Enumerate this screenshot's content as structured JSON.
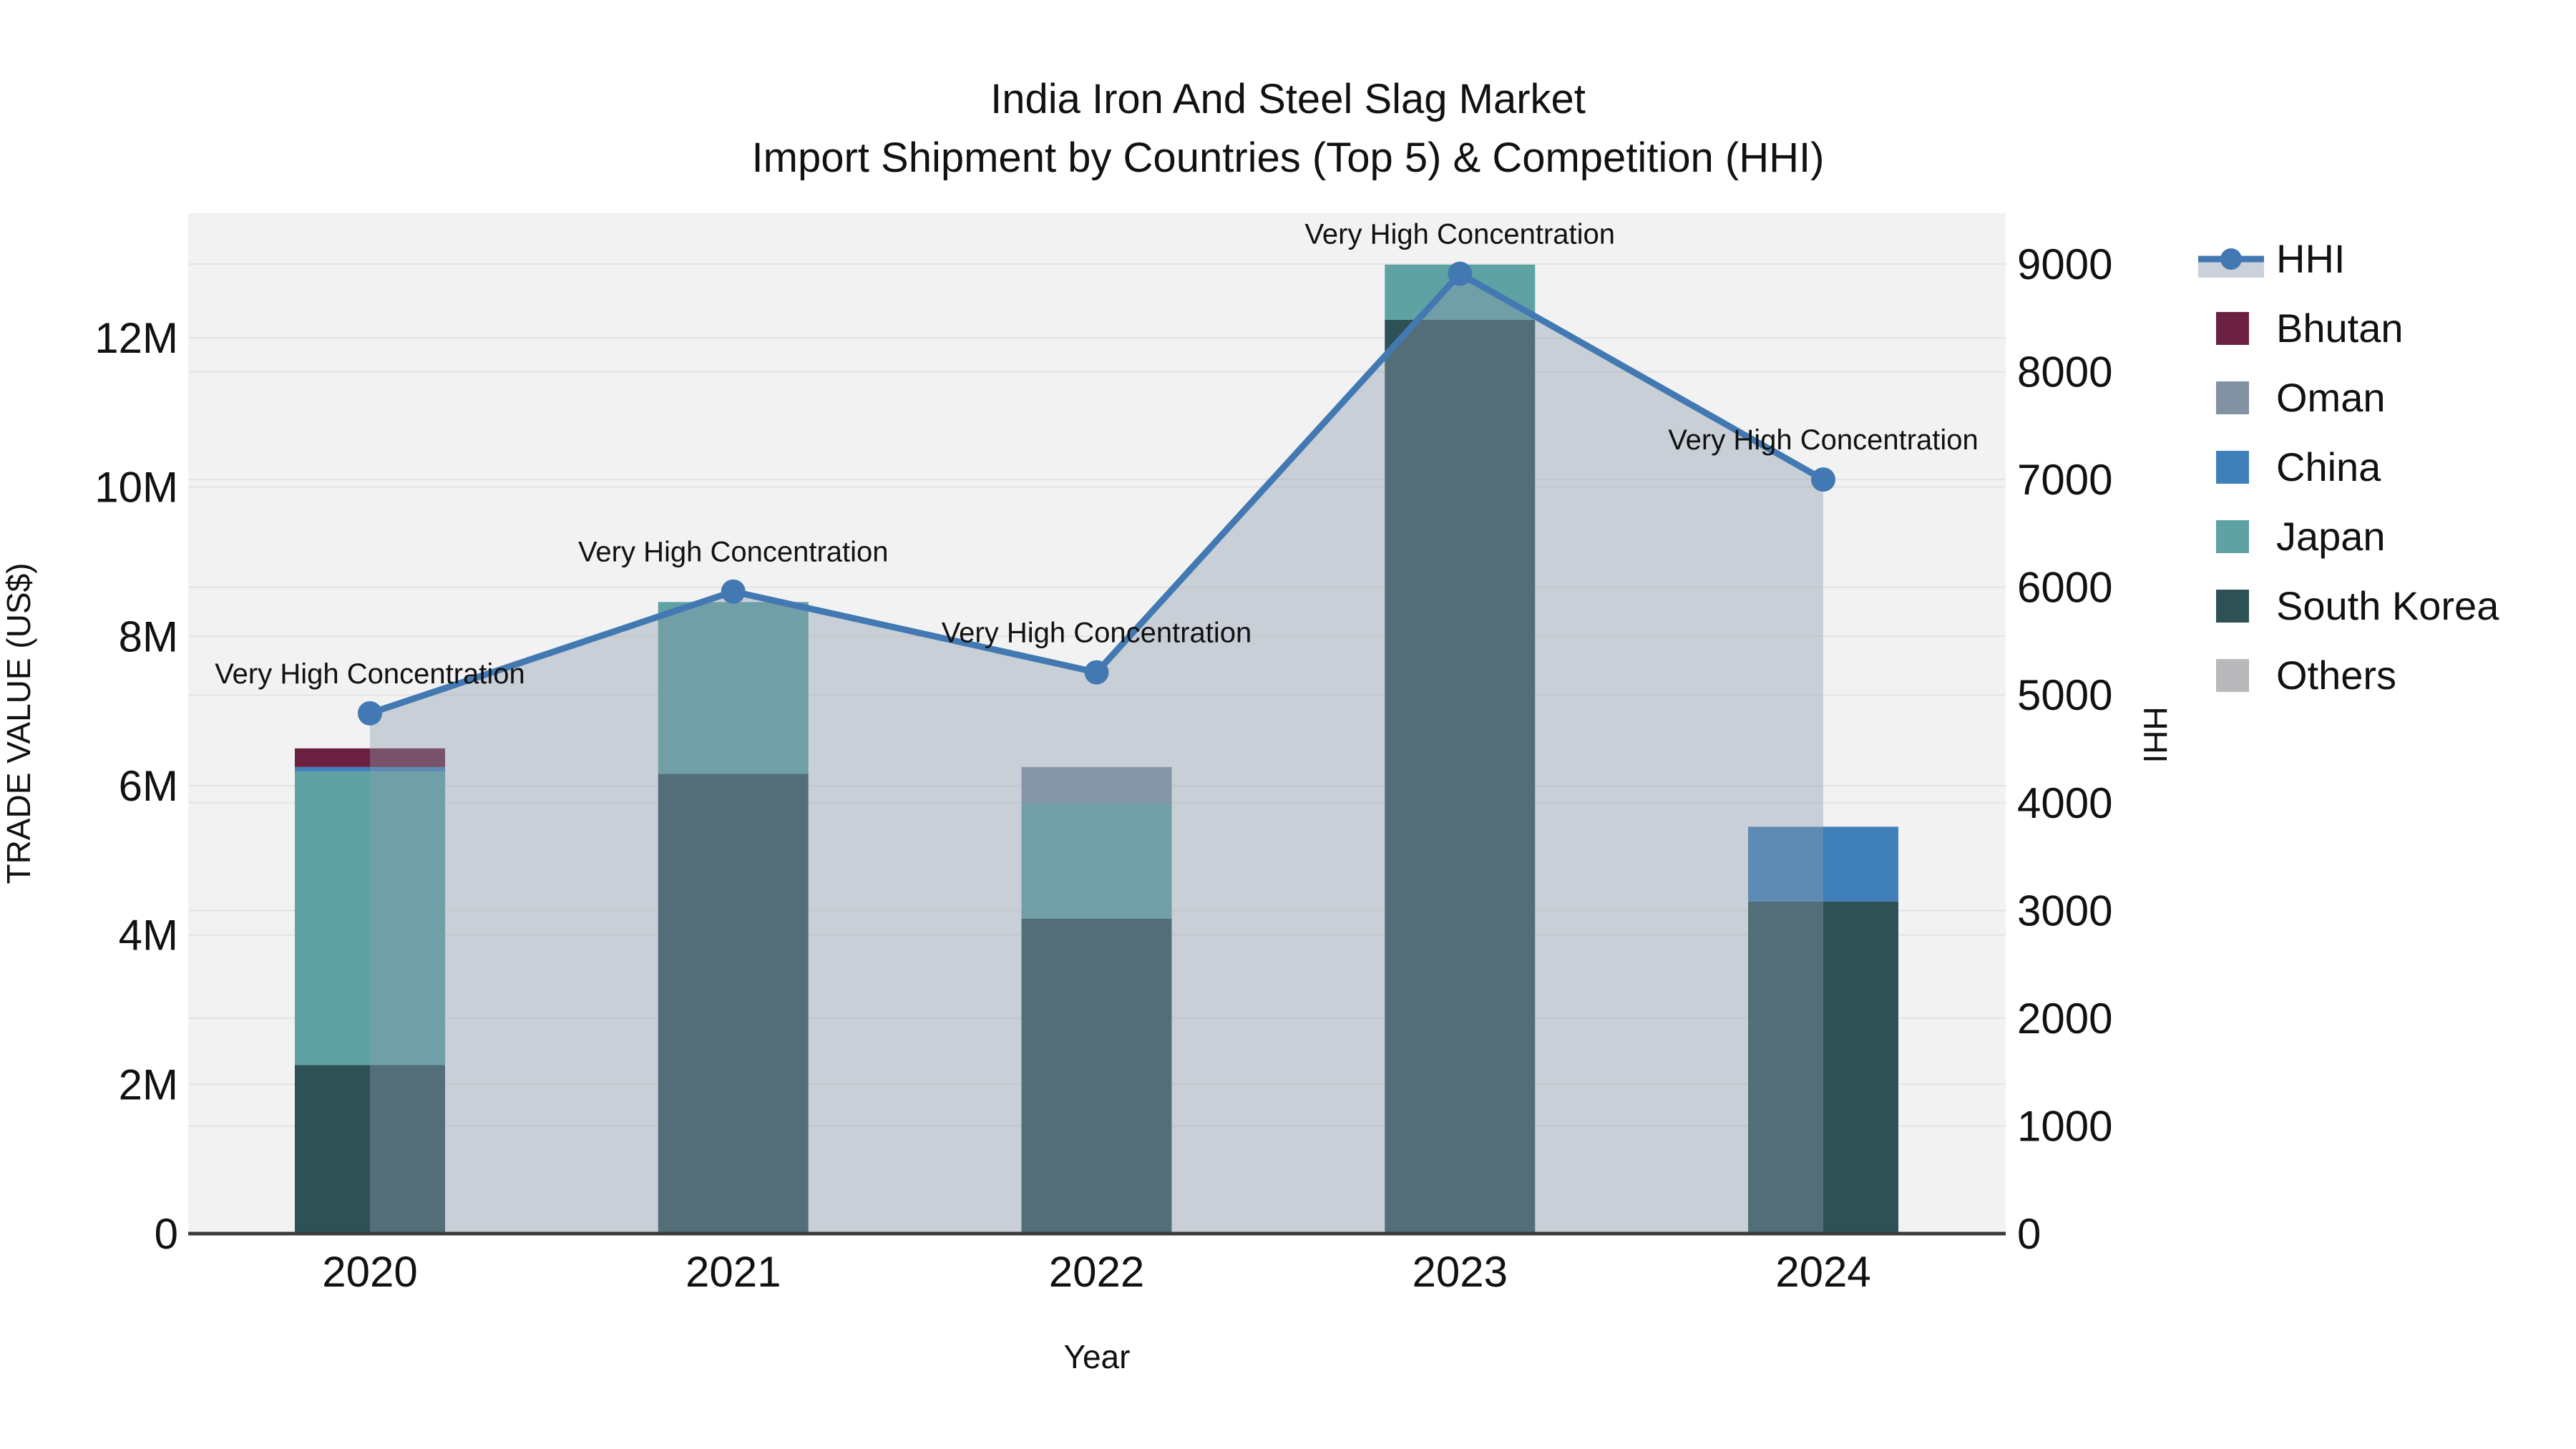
{
  "chart_data": {
    "type": "bar",
    "subtype": "stacked-bars-with-line-and-area",
    "title_line1": "India Iron And Steel Slag Market",
    "title_line2": "Import Shipment by Countries (Top 5) & Competition (HHI)",
    "xlabel": "Year",
    "ylabel_left": "TRADE VALUE (US$)",
    "ylabel_right": "HHI",
    "categories": [
      "2020",
      "2021",
      "2022",
      "2023",
      "2024"
    ],
    "values_unit": "millions USD",
    "series": [
      {
        "name": "Bhutan",
        "color": "#6b2040",
        "values": [
          0.25,
          0,
          0,
          0,
          0
        ]
      },
      {
        "name": "Oman",
        "color": "#8292a3",
        "values": [
          0,
          0,
          0.48,
          0,
          0
        ]
      },
      {
        "name": "China",
        "color": "#4080ba",
        "values": [
          0.06,
          0,
          0,
          0,
          1.0
        ]
      },
      {
        "name": "Japan",
        "color": "#5fa2a4",
        "values": [
          3.93,
          2.3,
          1.55,
          0.74,
          0
        ]
      },
      {
        "name": "South Korea",
        "color": "#2e5155",
        "values": [
          2.26,
          6.16,
          4.22,
          12.24,
          4.45
        ]
      },
      {
        "name": "Others",
        "color": "#b9b9bb",
        "values": [
          0,
          0,
          0,
          0,
          0
        ]
      }
    ],
    "stack_order": [
      "South Korea",
      "Japan",
      "China",
      "Oman",
      "Bhutan",
      "Others"
    ],
    "line_series": {
      "name": "HHI",
      "color": "#4379b2",
      "area_color": "#8b9aac",
      "area_opacity": 0.4,
      "values": [
        4830,
        5960,
        5210,
        8910,
        7000
      ]
    },
    "annotation_text": "Very High Concentration",
    "y_left": {
      "min": 0,
      "max": 13.67,
      "ticks": [
        0,
        2,
        4,
        6,
        8,
        10,
        12
      ],
      "tick_labels": [
        "0",
        "2M",
        "4M",
        "6M",
        "8M",
        "10M",
        "12M"
      ]
    },
    "y_right": {
      "min": 0,
      "max": 9470,
      "ticks": [
        0,
        1000,
        2000,
        3000,
        4000,
        5000,
        6000,
        7000,
        8000,
        9000
      ],
      "tick_labels": [
        "0",
        "1000",
        "2000",
        "3000",
        "4000",
        "5000",
        "6000",
        "7000",
        "8000",
        "9000"
      ]
    },
    "legend": [
      "HHI",
      "Bhutan",
      "Oman",
      "China",
      "Japan",
      "South Korea",
      "Others"
    ],
    "grid": true,
    "legend_position": "right",
    "style": {
      "plot_background": "#f2f2f2",
      "grid_color": "#e3e3e3",
      "axis_line_color": "#3a3a3a",
      "text_color": "#111111"
    }
  }
}
